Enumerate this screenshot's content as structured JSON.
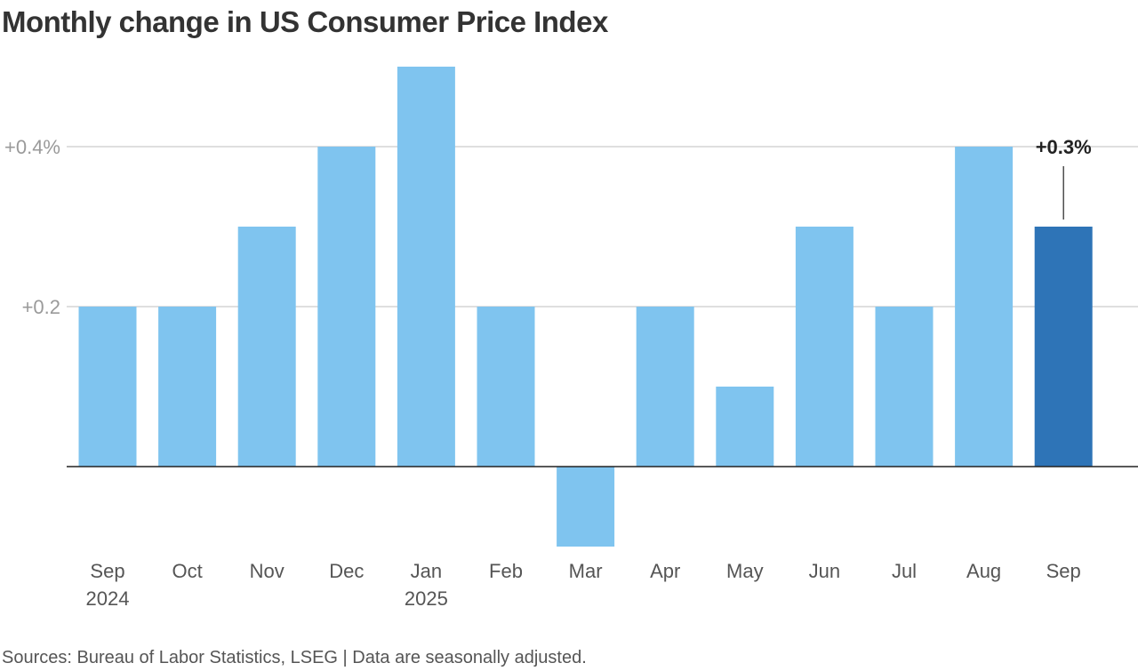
{
  "chart_data": {
    "type": "bar",
    "title": "Monthly change in US Consumer Price Index",
    "categories": [
      "Sep",
      "Oct",
      "Nov",
      "Dec",
      "Jan",
      "Feb",
      "Mar",
      "Apr",
      "May",
      "Jun",
      "Jul",
      "Aug",
      "Sep"
    ],
    "category_years": [
      "2024",
      "",
      "",
      "",
      "2025",
      "",
      "",
      "",
      "",
      "",
      "",
      "",
      ""
    ],
    "values": [
      0.2,
      0.2,
      0.3,
      0.4,
      0.5,
      0.2,
      -0.1,
      0.2,
      0.1,
      0.3,
      0.2,
      0.4,
      0.3
    ],
    "ylim": [
      -0.1,
      0.5
    ],
    "yticks": [
      0.2,
      0.4
    ],
    "ytick_labels": [
      "+0.2",
      "+0.4%"
    ],
    "grid": true,
    "highlight_index": 12,
    "annotation": "+0.3%",
    "colors": {
      "bar": "#7fc4ef",
      "highlight": "#2e74b7",
      "grid": "#cccccc",
      "axis": "#222222"
    }
  },
  "source": "Sources: Bureau of Labor Statistics, LSEG | Data are seasonally adjusted."
}
